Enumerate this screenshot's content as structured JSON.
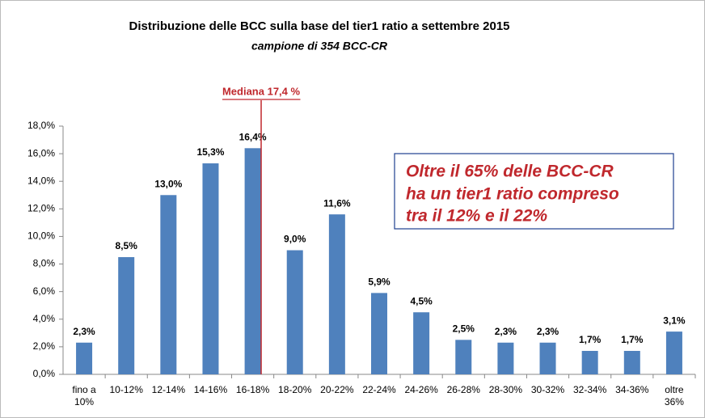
{
  "chart_data": {
    "type": "bar",
    "title": "Distribuzione delle BCC sulla base del tier1 ratio a settembre  2015",
    "subtitle": "campione di 354 BCC-CR",
    "categories": [
      "fino a 10%",
      "10-12%",
      "12-14%",
      "14-16%",
      "16-18%",
      "18-20%",
      "20-22%",
      "22-24%",
      "24-26%",
      "26-28%",
      "28-30%",
      "30-32%",
      "32-34%",
      "34-36%",
      "oltre 36%"
    ],
    "values": [
      2.3,
      8.5,
      13.0,
      15.3,
      16.4,
      9.0,
      11.6,
      5.9,
      4.5,
      2.5,
      2.3,
      2.3,
      1.7,
      1.7,
      3.1
    ],
    "value_labels": [
      "2,3%",
      "8,5%",
      "13,0%",
      "15,3%",
      "16,4%",
      "9,0%",
      "11,6%",
      "5,9%",
      "4,5%",
      "2,5%",
      "2,3%",
      "2,3%",
      "1,7%",
      "1,7%",
      "3,1%"
    ],
    "color": "#4f81bd",
    "ylim": [
      0,
      18
    ],
    "yticks": [
      {
        "value": 0,
        "label": "0,0%"
      },
      {
        "value": 2,
        "label": "2,0%"
      },
      {
        "value": 4,
        "label": "4,0%"
      },
      {
        "value": 6,
        "label": "6,0%"
      },
      {
        "value": 8,
        "label": "8,0%"
      },
      {
        "value": 10,
        "label": "10,0%"
      },
      {
        "value": 12,
        "label": "12,0%"
      },
      {
        "value": 14,
        "label": "14,0%"
      },
      {
        "value": 16,
        "label": "16,0%"
      },
      {
        "value": 18,
        "label": "18,0%"
      }
    ],
    "median": {
      "value": 17.4,
      "label": "Mediana 17,4 %",
      "color": "#c0282d"
    },
    "annotation": [
      "Oltre il 65% delle BCC-CR",
      "ha un  tier1  ratio compreso",
      "tra il 12% e il 22%"
    ]
  }
}
